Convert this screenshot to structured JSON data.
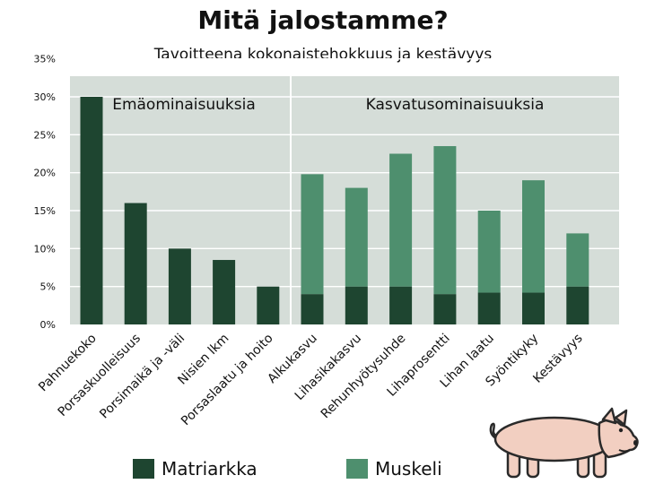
{
  "title": "Mitä jalostamme?",
  "subtitle": "Tavoitteena kokonaistehokkuus ja kestävyys",
  "chart_data": {
    "type": "bar",
    "stacked": true,
    "categories": [
      "Pahnuekoko",
      "Porsaskuolleisuus",
      "Porsimaikä ja -väli",
      "Nisien lkm",
      "Porsaslaatu ja hoito",
      "Alkukasvu",
      "Lihasikakasvu",
      "Rehunhyötysuhde",
      "Lihaprosentti",
      "Lihan laatu",
      "Syöntikyky",
      "Kestävyys"
    ],
    "series": [
      {
        "name": "Matriarkka",
        "color": "#1e4530",
        "values": [
          30,
          16,
          10,
          8.5,
          5,
          4,
          5,
          5,
          4,
          4.2,
          4.2,
          5
        ]
      },
      {
        "name": "Muskeli",
        "color": "#4e8f6e",
        "values": [
          0,
          0,
          0,
          0,
          0,
          15.8,
          13,
          17.5,
          19.5,
          10.8,
          14.8,
          7
        ]
      }
    ],
    "y_ticks": [
      "0%",
      "5%",
      "10%",
      "15%",
      "20%",
      "25%",
      "30%",
      "35%"
    ],
    "ylim": [
      0,
      35
    ],
    "grid": true,
    "groups": [
      {
        "label": "Emäominaisuuksia",
        "count": 5
      },
      {
        "label": "Kasvatusominaisuuksia",
        "count": 7
      }
    ],
    "plot_background": "#d5ddd8",
    "legend": {
      "position": "bottom"
    }
  },
  "pig": {
    "icon": "pig-icon"
  }
}
